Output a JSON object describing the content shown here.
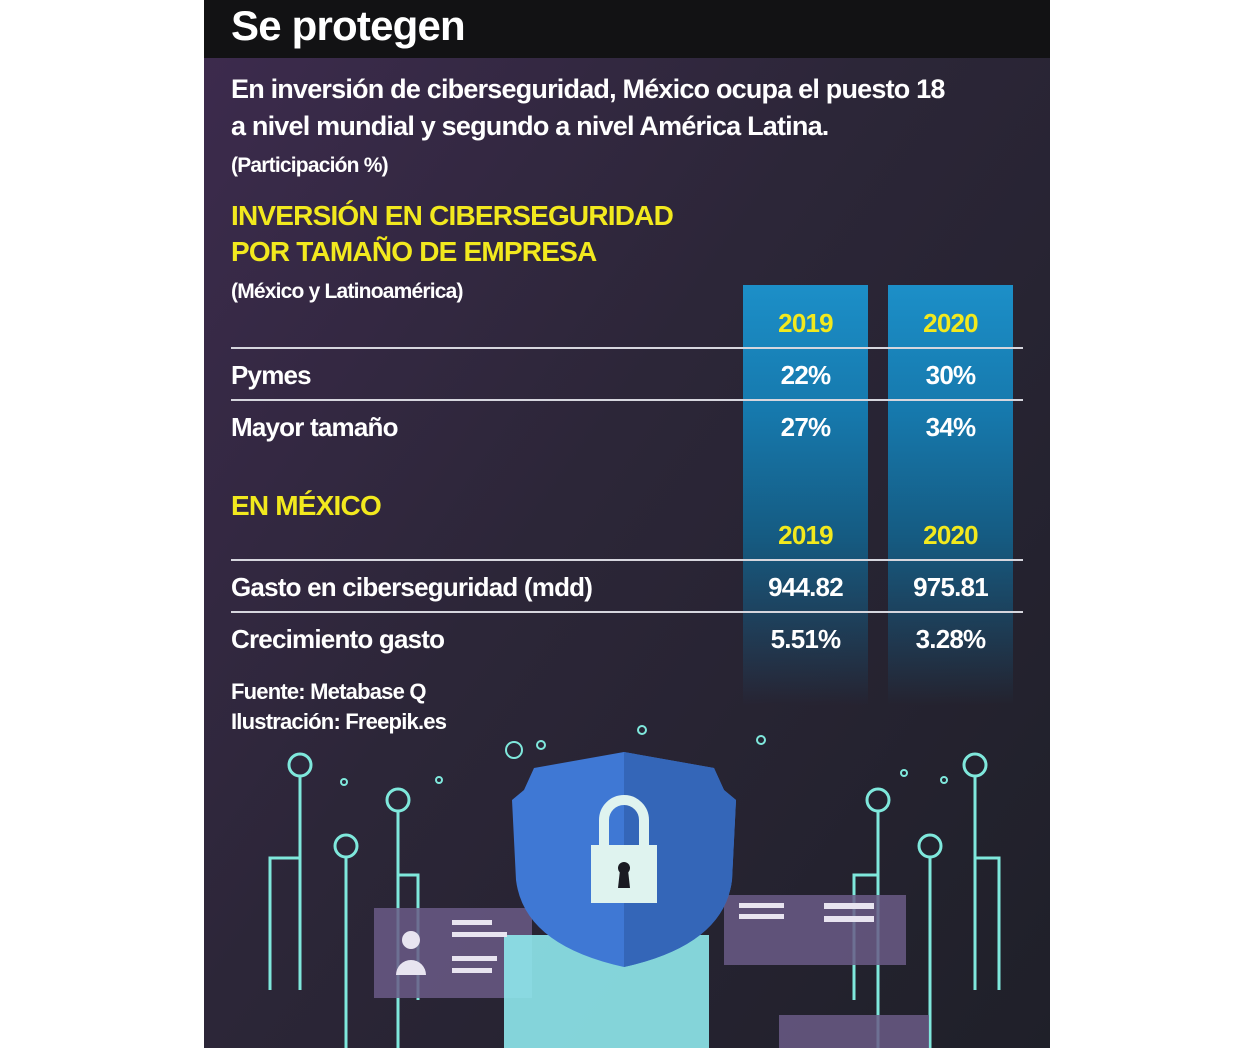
{
  "title": "Se protegen",
  "subtitle": [
    "En inversión de ciberseguridad, México ocupa el puesto 18",
    "a nivel mundial y segundo a nivel América Latina."
  ],
  "unit_note": "(Participación %)",
  "section1": {
    "heading": [
      "INVERSIÓN EN CIBERSEGURIDAD",
      "POR TAMAÑO DE EMPRESA"
    ],
    "note": "(México y Latinoamérica)"
  },
  "section2": {
    "heading": "EN MÉXICO"
  },
  "source": "Fuente: Metabase Q",
  "illustration_credit": "Ilustración: Freepik.es",
  "colors": {
    "accent_yellow": "#f2e91e",
    "column_blue": "#1c8fc8",
    "shield_blue": "#3f78d4",
    "circuit_teal": "#7fe8dc"
  },
  "chart_data": [
    {
      "type": "table",
      "title": "INVERSIÓN EN CIBERSEGURIDAD POR TAMAÑO DE EMPRESA",
      "columns": [
        "2019",
        "2020"
      ],
      "rows": [
        {
          "label": "Pymes",
          "values": [
            "22%",
            "30%"
          ]
        },
        {
          "label": "Mayor tamaño",
          "values": [
            "27%",
            "34%"
          ]
        }
      ]
    },
    {
      "type": "table",
      "title": "EN MÉXICO",
      "columns": [
        "2019",
        "2020"
      ],
      "rows": [
        {
          "label": "Gasto en ciberseguridad (mdd)",
          "values": [
            "944.82",
            "975.81"
          ]
        },
        {
          "label": "Crecimiento gasto",
          "values": [
            "5.51%",
            "3.28%"
          ]
        }
      ]
    }
  ]
}
